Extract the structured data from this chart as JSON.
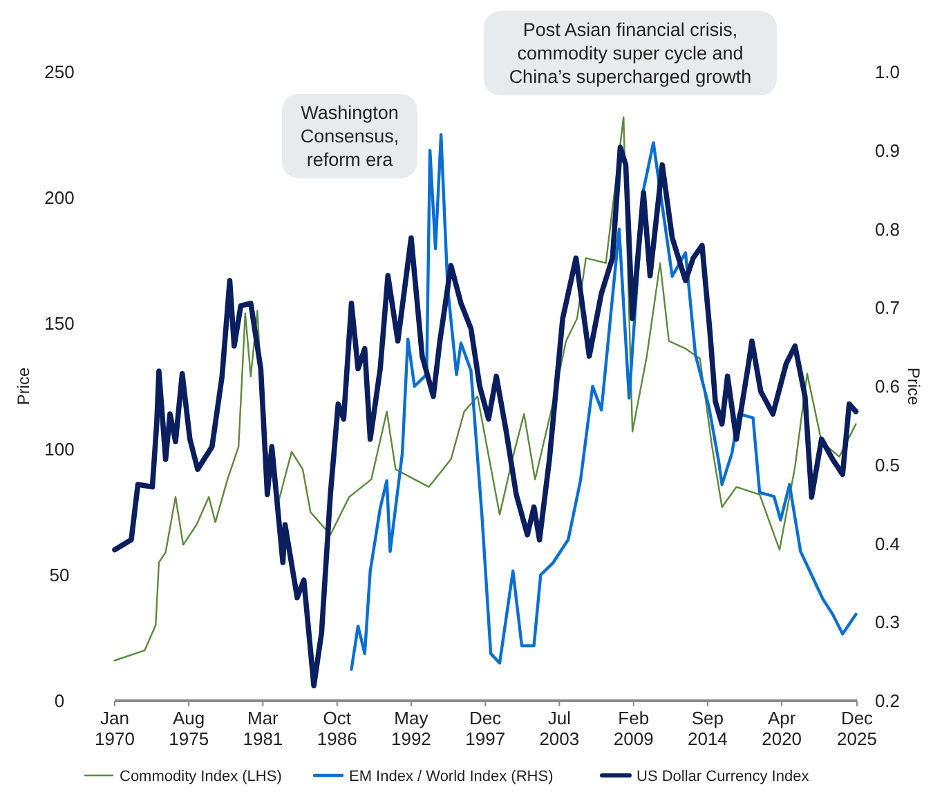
{
  "chart_data": {
    "type": "line",
    "ylabel": "Price",
    "y2label": "Price",
    "xlim": [
      "1970-01",
      "2025-12"
    ],
    "xticks": [
      {
        "value": "1970-01",
        "label": "Jan\n1970"
      },
      {
        "value": "1975-08",
        "label": "Aug\n1975"
      },
      {
        "value": "1981-03",
        "label": "Mar\n1981"
      },
      {
        "value": "1986-10",
        "label": "Oct\n1986"
      },
      {
        "value": "1992-05",
        "label": "May\n1992"
      },
      {
        "value": "1997-12",
        "label": "Dec\n1997"
      },
      {
        "value": "2003-07",
        "label": "Jul\n2003"
      },
      {
        "value": "2009-02",
        "label": "Feb\n2009"
      },
      {
        "value": "2014-09",
        "label": "Sep\n2014"
      },
      {
        "value": "2020-04",
        "label": "Apr\n2020"
      },
      {
        "value": "2025-12",
        "label": "Dec\n2025"
      }
    ],
    "ylim": [
      0,
      250
    ],
    "yticks": [
      0,
      50,
      100,
      150,
      200,
      250
    ],
    "y2lim": [
      0.2,
      1.0
    ],
    "y2ticks": [
      {
        "value": 0.2,
        "label": "0.2"
      },
      {
        "value": 0.3,
        "label": "0.3"
      },
      {
        "value": 0.4,
        "label": "0.4"
      },
      {
        "value": 0.5,
        "label": "0.5"
      },
      {
        "value": 0.6,
        "label": "0.6"
      },
      {
        "value": 0.7,
        "label": "0.7"
      },
      {
        "value": 0.8,
        "label": "0.8"
      },
      {
        "value": 0.9,
        "label": "0.9"
      },
      {
        "value": 1.0,
        "label": "1.0"
      }
    ],
    "grid": false,
    "legend": "bottom",
    "line_style": "solid",
    "annotations": [
      "Washington\nConsensus,\nreform era",
      "Post Asian financial crisis,\ncommodity super cycle and\nChina’s supercharged growth"
    ],
    "series": [
      {
        "name": "Commodity Index  (LHS)",
        "color": "#5b8a3c",
        "x": [
          "1970-01",
          "1972-04",
          "1973-02",
          "1973-05",
          "1973-11",
          "1974-08",
          "1975-03",
          "1976-03",
          "1977-02",
          "1977-08",
          "1978-07",
          "1979-05",
          "1979-11",
          "1980-04",
          "1980-10",
          "1981-04",
          "1982-05",
          "1983-05",
          "1984-03",
          "1984-10",
          "1986-04",
          "1987-09",
          "1989-05",
          "1990-07",
          "1991-03",
          "1993-09",
          "1995-05",
          "1996-05",
          "1997-05",
          "1999-01",
          "2000-01",
          "2000-11",
          "2001-09",
          "2003-01",
          "2004-01",
          "2004-11",
          "2005-07",
          "2007-01",
          "2008-05",
          "2009-01",
          "2010-02",
          "2011-02",
          "2011-10",
          "2013-01",
          "2014-02",
          "2015-01",
          "2015-10",
          "2016-11",
          "2018-08",
          "2020-02",
          "2021-04",
          "2022-03",
          "2023-04",
          "2024-08",
          "2025-11"
        ],
        "values": [
          16,
          20,
          30,
          55,
          59,
          81,
          62,
          70,
          81,
          71,
          88,
          101,
          154,
          129,
          155,
          104,
          79,
          99,
          92,
          75,
          66,
          81,
          88,
          115,
          92,
          85,
          96,
          115,
          121,
          74,
          97,
          114,
          88,
          118,
          143,
          152,
          176,
          174,
          232,
          107,
          137,
          174,
          143,
          140,
          136,
          101,
          77,
          85,
          82,
          60,
          93,
          130,
          103,
          97,
          110
        ]
      },
      {
        "name": "EM Index / World Index  (RHS)",
        "color": "#0a6fd1",
        "axis": "y2",
        "x": [
          "1987-11",
          "1988-05",
          "1988-11",
          "1989-04",
          "1990-01",
          "1990-07",
          "1990-10",
          "1991-09",
          "1992-02",
          "1992-08",
          "1993-07",
          "1993-10",
          "1994-03",
          "1994-08",
          "1995-02",
          "1995-10",
          "1996-02",
          "1996-11",
          "1997-09",
          "1998-05",
          "1999-01",
          "2000-01",
          "2000-09",
          "2001-08",
          "2002-02",
          "2003-01",
          "2004-03",
          "2005-02",
          "2006-01",
          "2006-09",
          "2008-01",
          "2008-10",
          "2009-11",
          "2010-08",
          "2011-04",
          "2012-01",
          "2013-01",
          "2013-10",
          "2014-10",
          "2015-07",
          "2015-10",
          "2016-07",
          "2017-01",
          "2018-02",
          "2018-08",
          "2019-09",
          "2020-03",
          "2020-11",
          "2021-09",
          "2022-07",
          "2023-05",
          "2024-02",
          "2024-11",
          "2025-11"
        ],
        "values": [
          0.24,
          0.295,
          0.26,
          0.365,
          0.445,
          0.48,
          0.39,
          0.515,
          0.66,
          0.6,
          0.615,
          0.9,
          0.775,
          0.92,
          0.725,
          0.615,
          0.655,
          0.62,
          0.435,
          0.26,
          0.248,
          0.365,
          0.27,
          0.27,
          0.36,
          0.375,
          0.405,
          0.48,
          0.6,
          0.57,
          0.8,
          0.585,
          0.85,
          0.91,
          0.83,
          0.74,
          0.77,
          0.64,
          0.575,
          0.505,
          0.475,
          0.515,
          0.565,
          0.56,
          0.465,
          0.46,
          0.43,
          0.475,
          0.39,
          0.36,
          0.33,
          0.31,
          0.285,
          0.31
        ]
      },
      {
        "name": "US Dollar Currency Index",
        "color": "#0b1f5e",
        "x": [
          "1970-01",
          "1971-04",
          "1971-10",
          "1972-11",
          "1973-03",
          "1973-05",
          "1973-11",
          "1974-03",
          "1974-08",
          "1975-02",
          "1975-09",
          "1976-04",
          "1977-05",
          "1978-02",
          "1978-09",
          "1979-01",
          "1979-07",
          "1980-04",
          "1981-01",
          "1981-07",
          "1981-11",
          "1982-09",
          "1982-11",
          "1983-10",
          "1984-04",
          "1985-01",
          "1985-08",
          "1986-04",
          "1986-11",
          "1987-04",
          "1987-11",
          "1988-05",
          "1988-11",
          "1989-04",
          "1990-01",
          "1990-08",
          "1991-05",
          "1992-05",
          "1993-03",
          "1994-01",
          "1994-07",
          "1995-05",
          "1996-02",
          "1996-11",
          "1997-07",
          "1998-03",
          "1998-10",
          "1999-07",
          "2000-04",
          "2001-02",
          "2001-08",
          "2002-01",
          "2002-10",
          "2003-10",
          "2004-10",
          "2005-10",
          "2006-09",
          "2007-07",
          "2008-02",
          "2008-07",
          "2009-01",
          "2009-11",
          "2010-05",
          "2011-04",
          "2012-01",
          "2013-01",
          "2013-08",
          "2014-04",
          "2014-11",
          "2015-04",
          "2015-10",
          "2016-03",
          "2016-11",
          "2017-10",
          "2018-01",
          "2018-09",
          "2019-08",
          "2020-08",
          "2021-04",
          "2022-01",
          "2022-07",
          "2023-04",
          "2024-02",
          "2024-11",
          "2025-05",
          "2025-11"
        ],
        "values": [
          60,
          64,
          86,
          85,
          110,
          131,
          96,
          114,
          103,
          130,
          104,
          92,
          101,
          129,
          167,
          141,
          157,
          158,
          132,
          82,
          101,
          55,
          70,
          41,
          48,
          6,
          27,
          82,
          118,
          112,
          158,
          132,
          140,
          104,
          132,
          169,
          143,
          184,
          137,
          121,
          143,
          173,
          158,
          148,
          125,
          112,
          129,
          107,
          82,
          66,
          77,
          64,
          96,
          152,
          176,
          137,
          162,
          176,
          220,
          213,
          152,
          202,
          169,
          213,
          184,
          167,
          176,
          181,
          147,
          119,
          110,
          129,
          104,
          134,
          143,
          123,
          114,
          134,
          141,
          121,
          81,
          104,
          96,
          90,
          118,
          115
        ]
      }
    ]
  }
}
